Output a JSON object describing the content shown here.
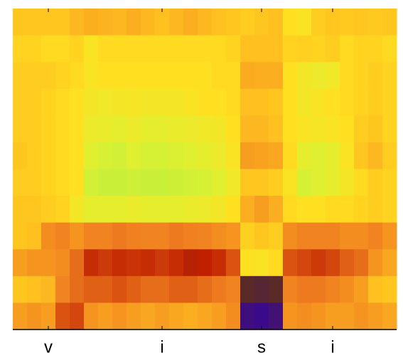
{
  "chart_data": {
    "type": "heatmap",
    "categories": [
      null,
      null,
      "v",
      null,
      null,
      null,
      null,
      null,
      null,
      null,
      "i",
      null,
      null,
      null,
      null,
      null,
      null,
      "s",
      null,
      null,
      null,
      null,
      "i",
      null,
      null,
      null,
      null
    ],
    "zlim": [
      0,
      100
    ],
    "colorscale": [
      [
        0,
        "#3a0a8a"
      ],
      [
        18,
        "#5a2a28"
      ],
      [
        40,
        "#c02000"
      ],
      [
        55,
        "#f08020"
      ],
      [
        70,
        "#ffc020"
      ],
      [
        80,
        "#ffe020"
      ],
      [
        90,
        "#e0f030"
      ],
      [
        100,
        "#b0f040"
      ]
    ],
    "z": [
      [
        72,
        72,
        72,
        72,
        68,
        66,
        67,
        68,
        66,
        68,
        70,
        68,
        66,
        68,
        70,
        72,
        74,
        72,
        70,
        80,
        82,
        74,
        72,
        73,
        72,
        73,
        72
      ],
      [
        76,
        76,
        78,
        78,
        76,
        82,
        78,
        78,
        78,
        78,
        78,
        78,
        78,
        78,
        78,
        76,
        70,
        70,
        70,
        76,
        75,
        76,
        74,
        78,
        76,
        76,
        78
      ],
      [
        74,
        74,
        74,
        76,
        78,
        82,
        80,
        80,
        80,
        80,
        80,
        80,
        80,
        80,
        78,
        78,
        65,
        66,
        66,
        80,
        84,
        86,
        85,
        78,
        76,
        74,
        76
      ],
      [
        74,
        74,
        76,
        78,
        80,
        84,
        85,
        84,
        83,
        84,
        84,
        84,
        82,
        80,
        80,
        78,
        70,
        70,
        72,
        80,
        84,
        82,
        80,
        78,
        76,
        74,
        76
      ],
      [
        74,
        74,
        76,
        78,
        80,
        86,
        87,
        88,
        86,
        88,
        88,
        87,
        86,
        85,
        84,
        80,
        68,
        68,
        70,
        80,
        82,
        83,
        82,
        80,
        74,
        72,
        76
      ],
      [
        72,
        74,
        76,
        78,
        80,
        90,
        92,
        93,
        90,
        92,
        92,
        91,
        90,
        88,
        86,
        82,
        62,
        63,
        64,
        78,
        88,
        90,
        88,
        82,
        72,
        68,
        74
      ],
      [
        74,
        74,
        76,
        78,
        80,
        93,
        95,
        95,
        94,
        95,
        95,
        94,
        93,
        92,
        90,
        85,
        72,
        72,
        74,
        82,
        92,
        90,
        88,
        84,
        78,
        74,
        76
      ],
      [
        72,
        72,
        74,
        76,
        84,
        88,
        88,
        88,
        87,
        88,
        88,
        88,
        87,
        86,
        84,
        80,
        66,
        62,
        66,
        78,
        80,
        80,
        78,
        78,
        76,
        74,
        76
      ],
      [
        72,
        70,
        58,
        56,
        60,
        56,
        56,
        54,
        55,
        56,
        56,
        54,
        55,
        56,
        58,
        60,
        75,
        72,
        74,
        58,
        56,
        56,
        56,
        58,
        58,
        56,
        60
      ],
      [
        62,
        60,
        60,
        58,
        52,
        42,
        44,
        42,
        43,
        42,
        44,
        42,
        38,
        40,
        42,
        48,
        80,
        82,
        78,
        48,
        46,
        44,
        46,
        50,
        52,
        60,
        64
      ],
      [
        72,
        70,
        68,
        56,
        52,
        50,
        50,
        48,
        50,
        52,
        52,
        50,
        50,
        52,
        54,
        56,
        18,
        16,
        18,
        56,
        54,
        54,
        56,
        58,
        62,
        70,
        72
      ],
      [
        62,
        60,
        62,
        48,
        46,
        60,
        62,
        60,
        62,
        64,
        62,
        64,
        66,
        64,
        62,
        58,
        2,
        0,
        4,
        60,
        58,
        60,
        62,
        62,
        60,
        62,
        64
      ]
    ]
  }
}
